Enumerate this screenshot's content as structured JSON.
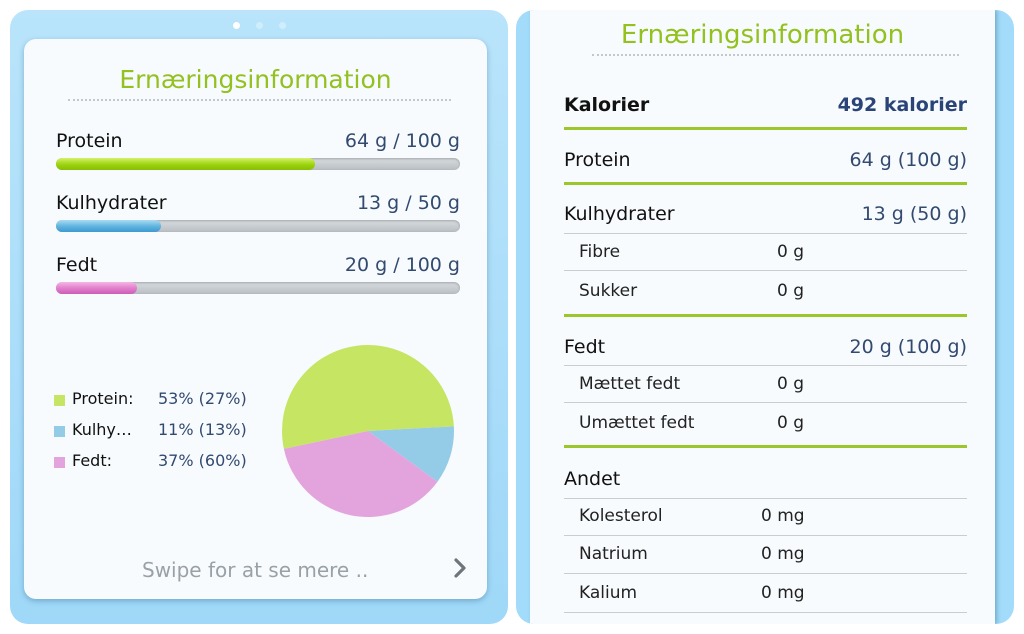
{
  "pager": {
    "page_count": 3,
    "active_index": 0
  },
  "left": {
    "title": "Ernæringsinformation",
    "macros": [
      {
        "label": "Protein",
        "value": "64 g / 100 g",
        "progress": 0.64,
        "color": "#9cd30e"
      },
      {
        "label": "Kulhydrater",
        "value": "13 g / 50 g",
        "progress": 0.26,
        "color": "#5eb2de"
      },
      {
        "label": "Fedt",
        "value": "20 g / 100 g",
        "progress": 0.2,
        "color": "#e07ccb"
      }
    ],
    "legend": [
      {
        "name": "Protein:",
        "value": "53% (27%)",
        "color": "#c6e563"
      },
      {
        "name": "Kulhy…",
        "value": "11% (13%)",
        "color": "#94cce8"
      },
      {
        "name": "Fedt:",
        "value": "37% (60%)",
        "color": "#e3a4dd"
      }
    ],
    "swipe_text": "Swipe for at se mere ..",
    "chevron_icon": "chevron-right-icon"
  },
  "chart_data": {
    "type": "pie",
    "categories": [
      "Protein",
      "Kulhydrater",
      "Fedt"
    ],
    "values": [
      53,
      11,
      37
    ],
    "colors": [
      "#c6e563",
      "#94cce8",
      "#e3a4dd"
    ]
  },
  "right": {
    "title": "Ernæringsinformation",
    "calories": {
      "label": "Kalorier",
      "value": "492 kalorier"
    },
    "protein": {
      "label": "Protein",
      "value": "64 g (100 g)"
    },
    "carbs": {
      "label": "Kulhydrater",
      "value": "13 g (50 g)",
      "items": [
        {
          "label": "Fibre",
          "value": "0 g"
        },
        {
          "label": "Sukker",
          "value": "0 g"
        }
      ]
    },
    "fat": {
      "label": "Fedt",
      "value": "20 g (100 g)",
      "items": [
        {
          "label": "Mættet fedt",
          "value": "0 g"
        },
        {
          "label": "Umættet fedt",
          "value": "0 g"
        }
      ]
    },
    "other": {
      "label": "Andet",
      "items": [
        {
          "label": "Kolesterol",
          "value": "0 mg"
        },
        {
          "label": "Natrium",
          "value": "0 mg"
        },
        {
          "label": "Kalium",
          "value": "0 mg"
        }
      ]
    }
  }
}
